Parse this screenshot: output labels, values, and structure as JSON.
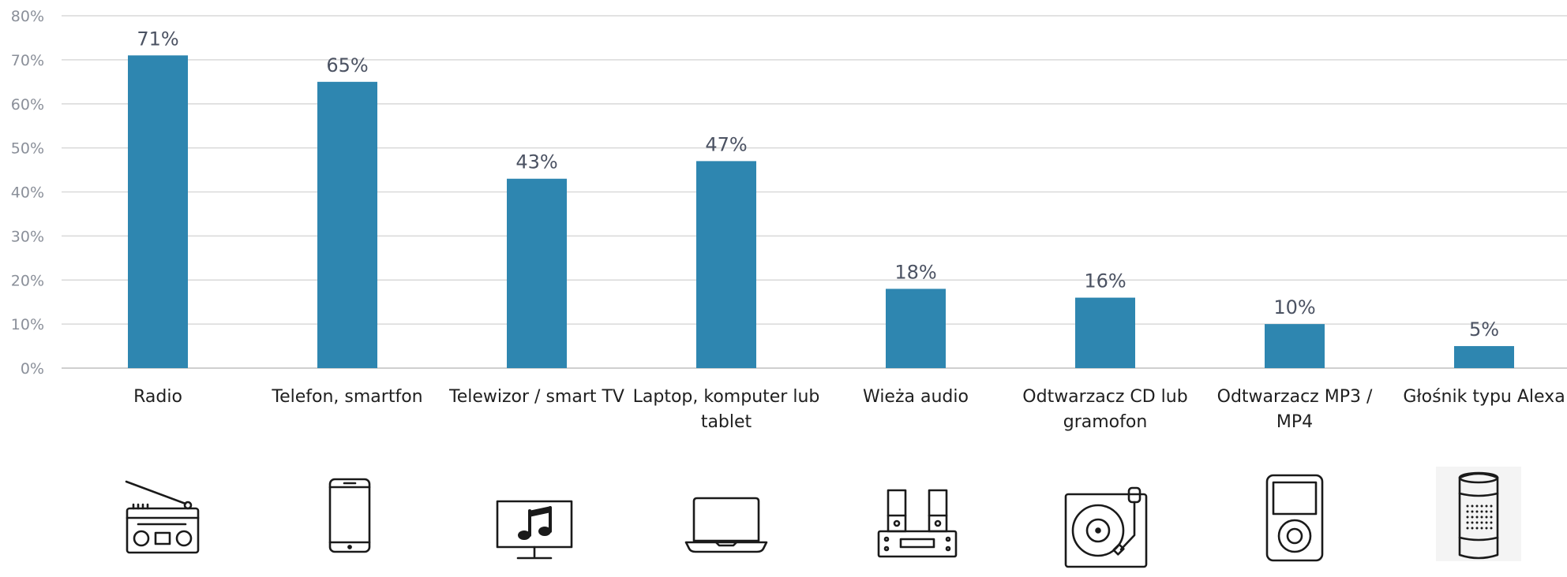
{
  "chart_data": {
    "type": "bar",
    "categories": [
      "Radio",
      "Telefon, smartfon",
      "Telewizor / smart TV",
      "Laptop, komputer lub tablet",
      "Wieża audio",
      "Odtwarzacz CD lub gramofon",
      "Odtwarzacz MP3 / MP4",
      "Głośnik typu Alexa"
    ],
    "category_lines": [
      [
        "Radio"
      ],
      [
        "Telefon, smartfon"
      ],
      [
        "Telewizor / smart TV"
      ],
      [
        "Laptop, komputer lub",
        "tablet"
      ],
      [
        "Wieża audio"
      ],
      [
        "Odtwarzacz CD lub",
        "gramofon"
      ],
      [
        "Odtwarzacz MP3 /",
        "MP4"
      ],
      [
        "Głośnik typu Alexa"
      ]
    ],
    "values": [
      71,
      65,
      43,
      47,
      18,
      16,
      10,
      5
    ],
    "data_labels": [
      "71%",
      "65%",
      "43%",
      "47%",
      "18%",
      "16%",
      "10%",
      "5%"
    ],
    "ylim": [
      0,
      80
    ],
    "y_ticks": [
      0,
      10,
      20,
      30,
      40,
      50,
      60,
      70,
      80
    ],
    "y_tick_labels": [
      "0%",
      "10%",
      "20%",
      "30%",
      "40%",
      "50%",
      "60%",
      "70%",
      "80%"
    ],
    "grid": true,
    "bar_color": "#2e86b0",
    "title": "",
    "xlabel": "",
    "ylabel": ""
  },
  "icons": [
    "radio-icon",
    "smartphone-icon",
    "tv-music-icon",
    "laptop-icon",
    "audio-system-icon",
    "turntable-icon",
    "mp3-player-icon",
    "smart-speaker-icon"
  ]
}
